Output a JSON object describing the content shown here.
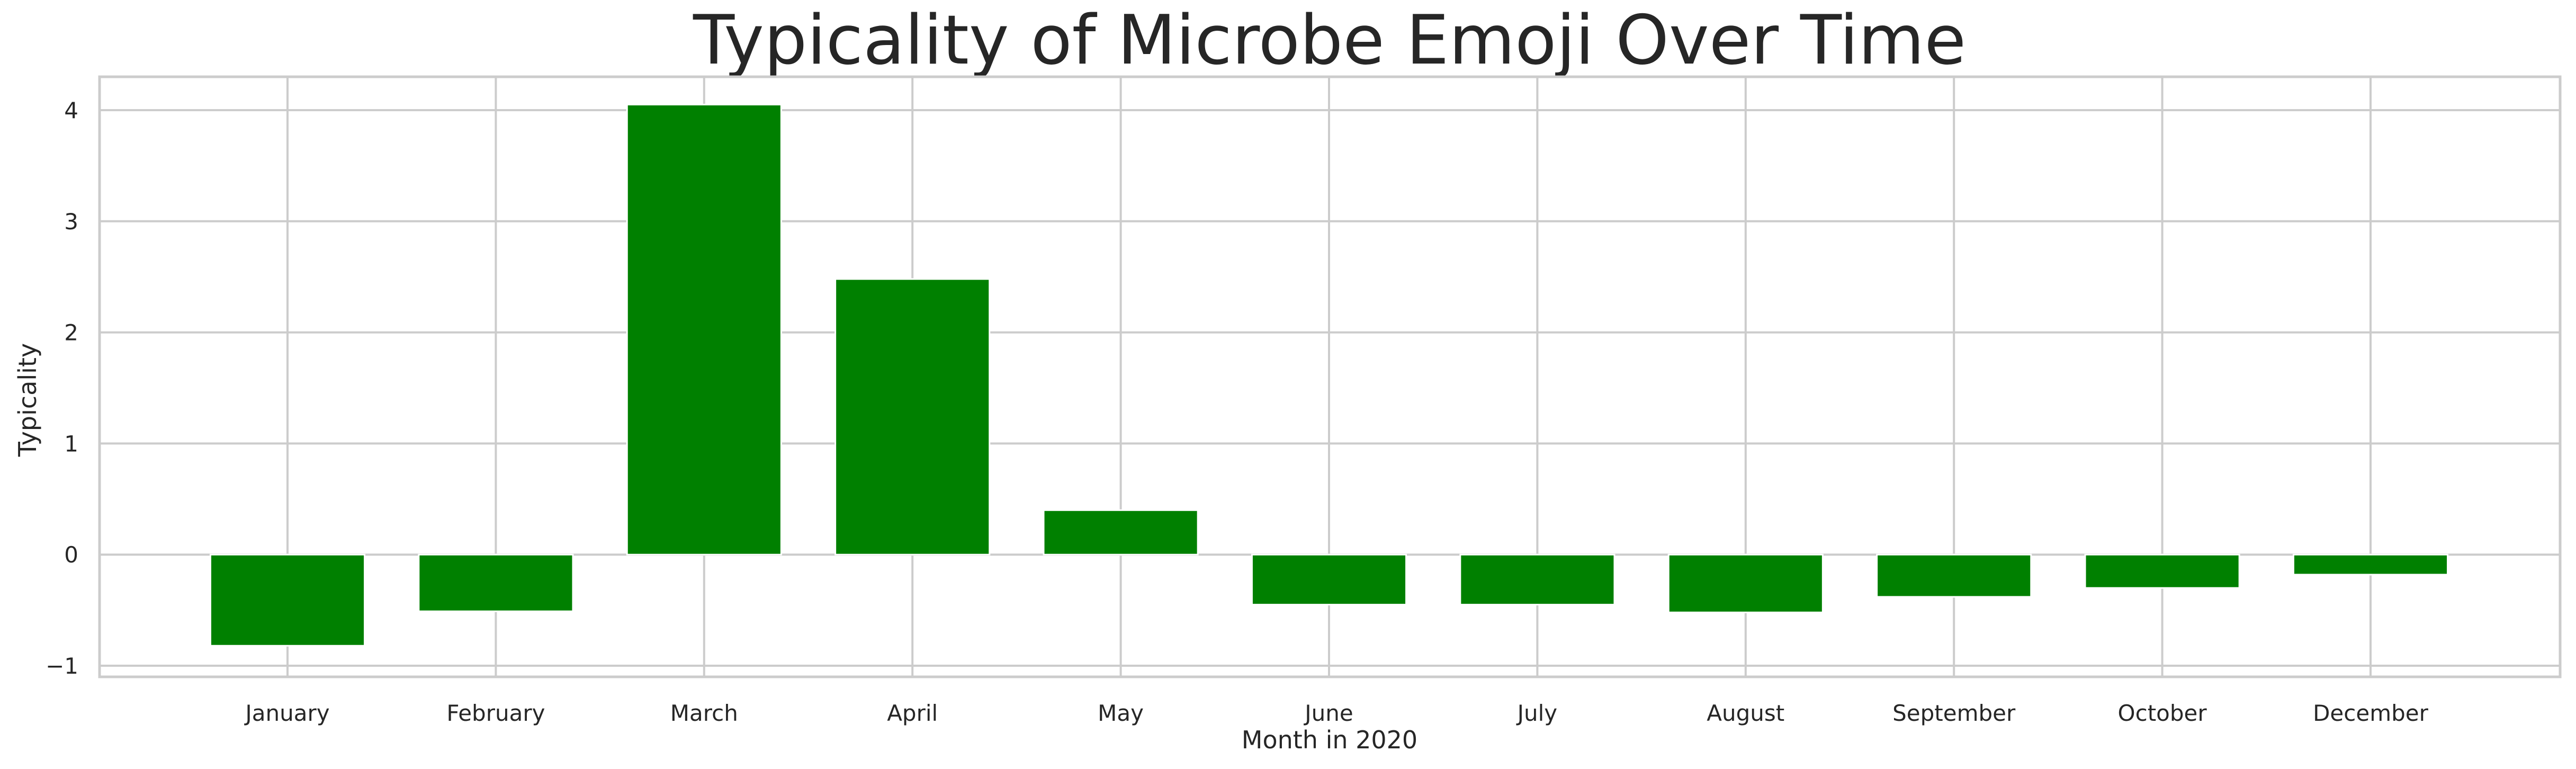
{
  "chart_data": {
    "type": "bar",
    "title": "Typicality of Microbe Emoji Over Time",
    "xlabel": "Month in 2020",
    "ylabel": "Typicality",
    "categories": [
      "January",
      "February",
      "March",
      "April",
      "May",
      "June",
      "July",
      "August",
      "September",
      "October",
      "December"
    ],
    "values": [
      -0.82,
      -0.51,
      4.05,
      2.48,
      0.4,
      -0.45,
      -0.45,
      -0.52,
      -0.38,
      -0.3,
      -0.18
    ],
    "ylim": [
      -1.1,
      4.3
    ],
    "yticks": [
      -1,
      0,
      1,
      2,
      3,
      4
    ],
    "ytick_labels": [
      "−1",
      "0",
      "1",
      "2",
      "3",
      "4"
    ],
    "grid": true,
    "bar_color": "#008000",
    "grid_color": "#cccccc",
    "text_color": "#262626"
  }
}
